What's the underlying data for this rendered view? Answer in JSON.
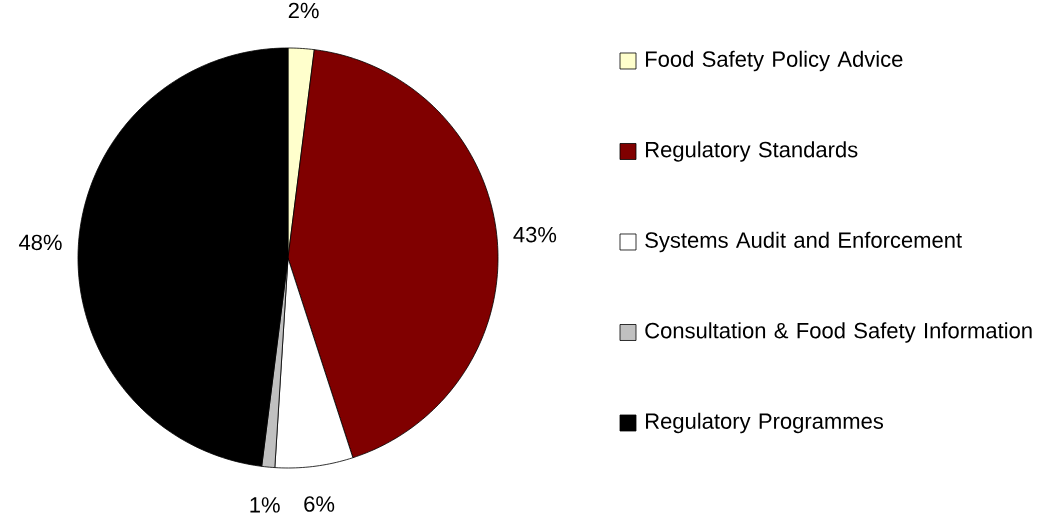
{
  "chart_data": {
    "type": "pie",
    "categories": [
      "Food Safety Policy Advice",
      "Regulatory Standards",
      "Systems Audit and Enforcement",
      "Consultation & Food Safety Information",
      "Regulatory Programmes"
    ],
    "values": [
      2,
      43,
      6,
      1,
      48
    ],
    "value_labels": [
      "2%",
      "43%",
      "6%",
      "1%",
      "48%"
    ],
    "colors": [
      "#ffffcc",
      "#800000",
      "#ffffff",
      "#c0c0c0",
      "#000000"
    ],
    "legend": "right"
  }
}
